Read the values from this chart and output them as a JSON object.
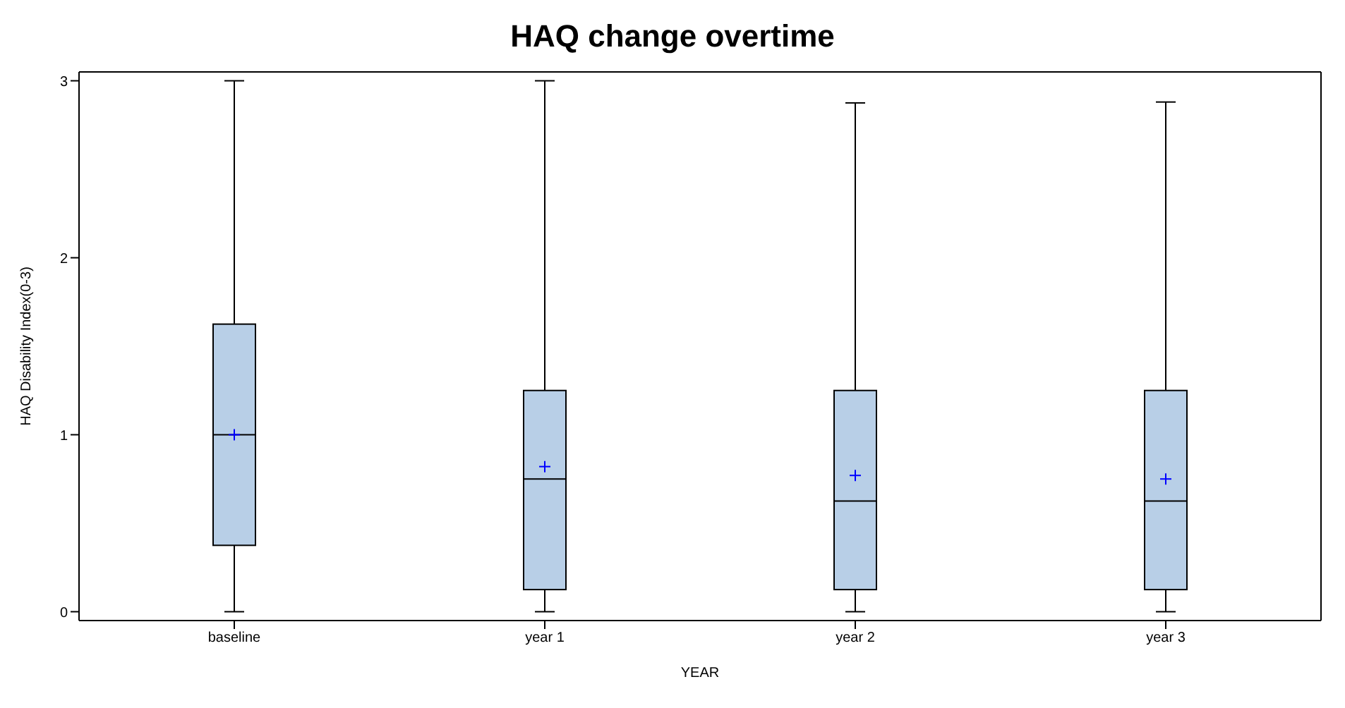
{
  "chart_data": {
    "type": "box",
    "title": "HAQ change overtime",
    "xlabel": "YEAR",
    "ylabel": "HAQ Disability Index(0-3)",
    "categories": [
      "baseline",
      "year 1",
      "year 2",
      "year 3"
    ],
    "color": "#b8cfe7",
    "boxes": [
      {
        "low": 0,
        "q1": 0.375,
        "median": 1,
        "q3": 1.625,
        "high": 3,
        "mean": 1
      },
      {
        "low": 0,
        "q1": 0.125,
        "median": 0.75,
        "q3": 1.25,
        "high": 3,
        "mean": 0.82
      },
      {
        "low": 0,
        "q1": 0.125,
        "median": 0.625,
        "q3": 1.25,
        "high": 2.875,
        "mean": 0.77
      },
      {
        "low": 0,
        "q1": 0.125,
        "median": 0.625,
        "q3": 1.25,
        "high": 2.88,
        "mean": 0.75
      }
    ],
    "ylim": [
      -0.05,
      3.05
    ],
    "yticks": [
      0,
      1,
      2,
      3
    ],
    "grid": false
  }
}
